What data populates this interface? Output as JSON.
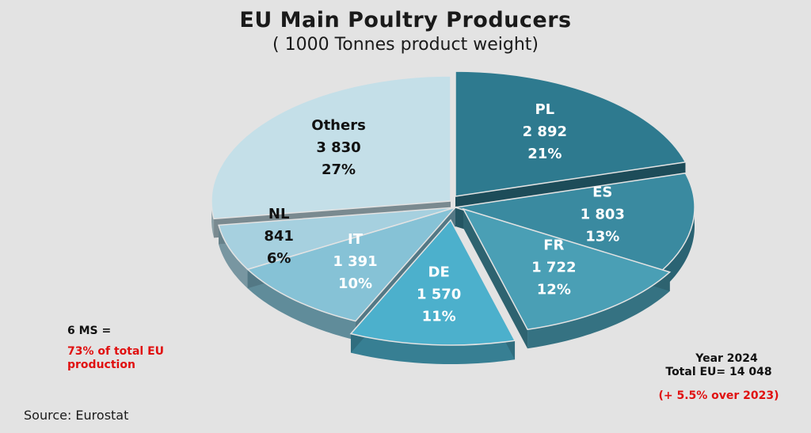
{
  "chart_data": {
    "type": "pie",
    "title": "EU  Main Poultry Producers",
    "subtitle": "( 1000 Tonnes product weight)",
    "slices": [
      {
        "label": "PL",
        "value": "2 892",
        "numeric": 2892,
        "pct": "21%",
        "color": "#2e7a8f"
      },
      {
        "label": "ES",
        "value": "1 803",
        "numeric": 1803,
        "pct": "13%",
        "color": "#3a8aa0"
      },
      {
        "label": "FR",
        "value": "1 722",
        "numeric": 1722,
        "pct": "12%",
        "color": "#4a9fb5"
      },
      {
        "label": "DE",
        "value": "1 570",
        "numeric": 1570,
        "pct": "11%",
        "color": "#4cb0cc"
      },
      {
        "label": "IT",
        "value": "1 391",
        "numeric": 1391,
        "pct": "10%",
        "color": "#86c2d6"
      },
      {
        "label": "NL",
        "value": "841",
        "numeric": 841,
        "pct": "6%",
        "color": "#a6d0df"
      },
      {
        "label": "Others",
        "value": "3 830",
        "numeric": 3830,
        "pct": "27%",
        "color": "#c4dfe8"
      }
    ]
  },
  "notes": {
    "ms": "6 MS  =",
    "ms_pct": "73% of total EU production",
    "year": "Year 2024",
    "total": "Total EU= 14 048",
    "growth": "(+ 5.5% over 2023)",
    "source": "Source: Eurostat"
  }
}
